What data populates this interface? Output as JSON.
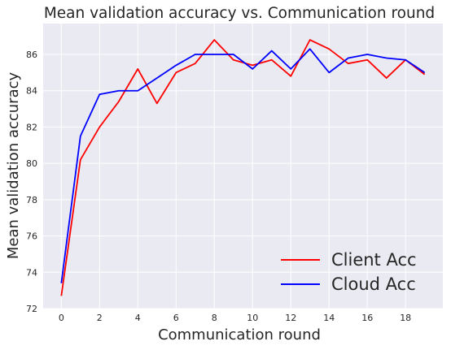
{
  "chart_data": {
    "type": "line",
    "title": "Mean validation accuracy vs. Communication round",
    "xlabel": "Communication round",
    "ylabel": "Mean validation accuracy",
    "xlim": [
      -0.95,
      19.95
    ],
    "ylim": [
      72,
      87.7
    ],
    "x_ticks": [
      0,
      2,
      4,
      6,
      8,
      10,
      12,
      14,
      16,
      18
    ],
    "y_ticks": [
      72,
      74,
      76,
      78,
      80,
      82,
      84,
      86
    ],
    "grid": true,
    "legend_position": "lower-right",
    "background_color": "#eaeaf2",
    "x": [
      0,
      1,
      2,
      3,
      4,
      5,
      6,
      7,
      8,
      9,
      10,
      11,
      12,
      13,
      14,
      15,
      16,
      17,
      18,
      19
    ],
    "series": [
      {
        "name": "Client Acc",
        "color": "#ff0000",
        "values": [
          72.7,
          80.2,
          82.0,
          83.4,
          85.2,
          83.3,
          85.0,
          85.5,
          86.8,
          85.7,
          85.4,
          85.7,
          84.8,
          86.8,
          86.3,
          85.5,
          85.7,
          84.7,
          85.7,
          84.9
        ]
      },
      {
        "name": "Cloud Acc",
        "color": "#0000ff",
        "values": [
          73.4,
          81.5,
          83.8,
          84.0,
          84.0,
          84.7,
          85.4,
          86.0,
          86.0,
          86.0,
          85.2,
          86.2,
          85.2,
          86.3,
          85.0,
          85.8,
          86.0,
          85.8,
          85.7,
          85.0
        ]
      }
    ]
  }
}
